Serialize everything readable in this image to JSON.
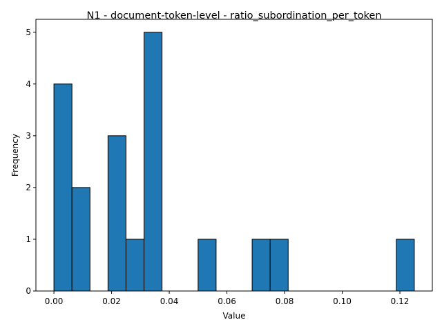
{
  "chart_data": {
    "type": "bar",
    "title": "N1 - document-token-level - ratio_subordination_per_token",
    "xlabel": "Value",
    "ylabel": "Frequency",
    "bar_color": "#1f77b4",
    "edge_color": "#000000",
    "xlim": [
      -0.00625,
      0.13125
    ],
    "ylim": [
      0,
      5.25
    ],
    "xticks": [
      0.0,
      0.02,
      0.04,
      0.06,
      0.08,
      0.1,
      0.12
    ],
    "xtick_labels": [
      "0.00",
      "0.02",
      "0.04",
      "0.06",
      "0.08",
      "0.10",
      "0.12"
    ],
    "yticks": [
      0,
      1,
      2,
      3,
      4,
      5
    ],
    "ytick_labels": [
      "0",
      "1",
      "2",
      "3",
      "4",
      "5"
    ],
    "bin_edges": [
      0.0,
      0.00625,
      0.0125,
      0.01875,
      0.025,
      0.03125,
      0.0375,
      0.04375,
      0.05,
      0.05625,
      0.0625,
      0.06875,
      0.075,
      0.08125,
      0.0875,
      0.09375,
      0.1,
      0.10625,
      0.1125,
      0.11875,
      0.125
    ],
    "counts": [
      4,
      2,
      0,
      3,
      1,
      5,
      0,
      0,
      1,
      0,
      0,
      1,
      1,
      0,
      0,
      0,
      0,
      0,
      0,
      1
    ]
  }
}
